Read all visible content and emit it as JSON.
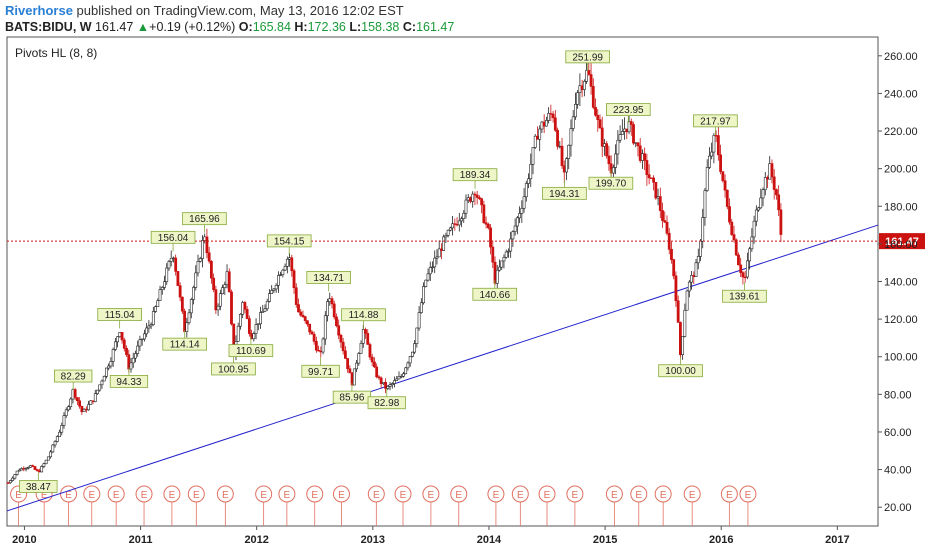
{
  "header": {
    "brand": "Riverhorse",
    "published_text": "published on TradingView.com, May 13, 2016 12:02 EST",
    "symbol": "BATS:BIDU, W",
    "last": "161.47",
    "change_arrow": "▲",
    "change": "+0.19 (+0.12%)",
    "open_label": "O:",
    "open": "165.84",
    "high_label": "H:",
    "high": "172.36",
    "low_label": "L:",
    "low": "158.38",
    "close_label": "C:",
    "close": "161.47"
  },
  "indicator_label": "Pivots HL (8, 8)",
  "colors": {
    "up": "#222222",
    "down": "#cc1111",
    "trendline": "#2222cc",
    "price_line": "#cc1111",
    "pivot_bg": "#eef6c8",
    "pivot_border": "#86a83a",
    "earnings": "#e07060"
  },
  "chart_data": {
    "type": "candlestick",
    "ylim": [
      10,
      270
    ],
    "xlim": [
      2009.85,
      2017.35
    ],
    "y_ticks": [
      "20.00",
      "40.00",
      "60.00",
      "80.00",
      "100.00",
      "120.00",
      "140.00",
      "160.00",
      "180.00",
      "200.00",
      "220.00",
      "240.00",
      "260.00"
    ],
    "x_ticks": [
      {
        "label": "2010",
        "x": 2010.0
      },
      {
        "label": "2011",
        "x": 2011.0
      },
      {
        "label": "2012",
        "x": 2012.0
      },
      {
        "label": "2013",
        "x": 2013.0
      },
      {
        "label": "2014",
        "x": 2014.0
      },
      {
        "label": "2015",
        "x": 2015.0
      },
      {
        "label": "2016",
        "x": 2016.0
      },
      {
        "label": "2017",
        "x": 2017.0
      }
    ],
    "current_price": {
      "value": 161.47,
      "label": "161.47"
    },
    "trendline": {
      "start": {
        "x": 2009.85,
        "y": 18.0
      },
      "end": {
        "x": 2017.35,
        "y": 170.0
      }
    },
    "price_path": [
      [
        2009.86,
        33
      ],
      [
        2009.95,
        40
      ],
      [
        2010.05,
        42
      ],
      [
        2010.12,
        38.47
      ],
      [
        2010.2,
        46
      ],
      [
        2010.3,
        60
      ],
      [
        2010.42,
        82.29
      ],
      [
        2010.5,
        70
      ],
      [
        2010.6,
        78
      ],
      [
        2010.75,
        100
      ],
      [
        2010.82,
        115.04
      ],
      [
        2010.9,
        94.33
      ],
      [
        2011.0,
        108
      ],
      [
        2011.1,
        120
      ],
      [
        2011.2,
        140
      ],
      [
        2011.28,
        156.04
      ],
      [
        2011.38,
        114.14
      ],
      [
        2011.5,
        150
      ],
      [
        2011.55,
        165.96
      ],
      [
        2011.65,
        125
      ],
      [
        2011.75,
        145
      ],
      [
        2011.8,
        100.95
      ],
      [
        2011.88,
        130
      ],
      [
        2011.95,
        110.69
      ],
      [
        2012.1,
        130
      ],
      [
        2012.2,
        145
      ],
      [
        2012.28,
        154.15
      ],
      [
        2012.35,
        125
      ],
      [
        2012.45,
        115
      ],
      [
        2012.55,
        99.71
      ],
      [
        2012.62,
        134.71
      ],
      [
        2012.72,
        110
      ],
      [
        2012.82,
        85.96
      ],
      [
        2012.92,
        114.88
      ],
      [
        2013.0,
        95
      ],
      [
        2013.05,
        88
      ],
      [
        2013.12,
        82.98
      ],
      [
        2013.25,
        90
      ],
      [
        2013.35,
        105
      ],
      [
        2013.45,
        140
      ],
      [
        2013.6,
        160
      ],
      [
        2013.75,
        175
      ],
      [
        2013.88,
        189.34
      ],
      [
        2014.0,
        165
      ],
      [
        2014.05,
        140.66
      ],
      [
        2014.18,
        160
      ],
      [
        2014.3,
        185
      ],
      [
        2014.42,
        220
      ],
      [
        2014.55,
        230
      ],
      [
        2014.65,
        194.31
      ],
      [
        2014.75,
        240
      ],
      [
        2014.85,
        251.99
      ],
      [
        2014.95,
        220
      ],
      [
        2015.05,
        199.7
      ],
      [
        2015.15,
        220
      ],
      [
        2015.2,
        223.95
      ],
      [
        2015.35,
        200
      ],
      [
        2015.45,
        185
      ],
      [
        2015.55,
        160
      ],
      [
        2015.6,
        140
      ],
      [
        2015.65,
        100.0
      ],
      [
        2015.7,
        135
      ],
      [
        2015.8,
        150
      ],
      [
        2015.88,
        200
      ],
      [
        2015.95,
        217.97
      ],
      [
        2016.05,
        180
      ],
      [
        2016.15,
        150
      ],
      [
        2016.2,
        139.61
      ],
      [
        2016.28,
        170
      ],
      [
        2016.35,
        190
      ],
      [
        2016.42,
        200
      ],
      [
        2016.48,
        185
      ],
      [
        2016.52,
        161.47
      ]
    ],
    "pivots": [
      {
        "x": 2010.12,
        "value": 38.47,
        "label": "38.47",
        "pos": "below"
      },
      {
        "x": 2010.42,
        "value": 82.29,
        "label": "82.29",
        "pos": "above"
      },
      {
        "x": 2010.82,
        "value": 115.04,
        "label": "115.04",
        "pos": "above"
      },
      {
        "x": 2010.9,
        "value": 94.33,
        "label": "94.33",
        "pos": "below"
      },
      {
        "x": 2011.28,
        "value": 156.04,
        "label": "156.04",
        "pos": "above"
      },
      {
        "x": 2011.38,
        "value": 114.14,
        "label": "114.14",
        "pos": "below"
      },
      {
        "x": 2011.55,
        "value": 165.96,
        "label": "165.96",
        "pos": "above"
      },
      {
        "x": 2011.8,
        "value": 100.95,
        "label": "100.95",
        "pos": "below"
      },
      {
        "x": 2011.95,
        "value": 110.69,
        "label": "110.69",
        "pos": "below"
      },
      {
        "x": 2012.28,
        "value": 154.15,
        "label": "154.15",
        "pos": "above"
      },
      {
        "x": 2012.55,
        "value": 99.71,
        "label": "99.71",
        "pos": "below"
      },
      {
        "x": 2012.62,
        "value": 134.71,
        "label": "134.71",
        "pos": "above"
      },
      {
        "x": 2012.82,
        "value": 85.96,
        "label": "85.96",
        "pos": "below"
      },
      {
        "x": 2012.92,
        "value": 114.88,
        "label": "114.88",
        "pos": "above"
      },
      {
        "x": 2013.12,
        "value": 82.98,
        "label": "82.98",
        "pos": "below"
      },
      {
        "x": 2013.88,
        "value": 189.34,
        "label": "189.34",
        "pos": "above"
      },
      {
        "x": 2014.05,
        "value": 140.66,
        "label": "140.66",
        "pos": "below"
      },
      {
        "x": 2014.65,
        "value": 194.31,
        "label": "194.31",
        "pos": "below"
      },
      {
        "x": 2014.85,
        "value": 251.99,
        "label": "251.99",
        "pos": "above"
      },
      {
        "x": 2015.05,
        "value": 199.7,
        "label": "199.70",
        "pos": "below"
      },
      {
        "x": 2015.2,
        "value": 223.95,
        "label": "223.95",
        "pos": "above"
      },
      {
        "x": 2015.65,
        "value": 100.0,
        "label": "100.00",
        "pos": "below"
      },
      {
        "x": 2015.95,
        "value": 217.97,
        "label": "217.97",
        "pos": "above"
      },
      {
        "x": 2016.2,
        "value": 139.61,
        "label": "139.61",
        "pos": "below"
      }
    ],
    "earnings_markers": {
      "label": "E",
      "x": [
        2009.95,
        2010.17,
        2010.38,
        2010.58,
        2010.79,
        2011.03,
        2011.27,
        2011.48,
        2011.73,
        2012.06,
        2012.26,
        2012.5,
        2012.73,
        2013.03,
        2013.26,
        2013.5,
        2013.74,
        2014.06,
        2014.27,
        2014.5,
        2014.74,
        2015.08,
        2015.29,
        2015.5,
        2015.75,
        2016.07,
        2016.23
      ]
    }
  }
}
